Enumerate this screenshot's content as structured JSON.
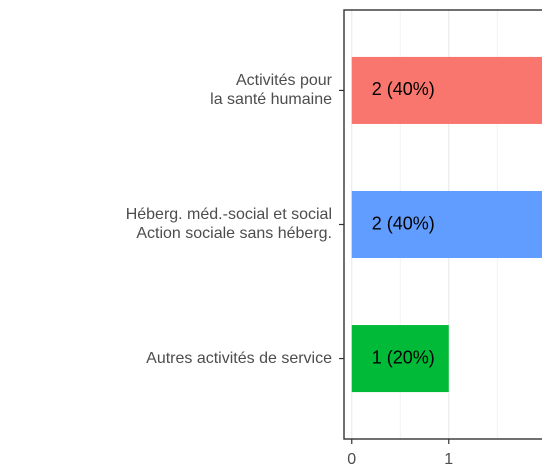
{
  "chart_data": {
    "type": "bar",
    "orientation": "horizontal",
    "categories": [
      [
        "Activités pour",
        "la santé humaine"
      ],
      [
        "Héberg. méd.-social et social",
        "Action sociale sans héberg."
      ],
      [
        "Autres activités de service"
      ]
    ],
    "values": [
      2,
      2,
      1
    ],
    "value_labels": [
      "2 (40%)",
      "2 (40%)",
      "1 (20%)"
    ],
    "colors": [
      "#F8766D",
      "#619CFF",
      "#00BA38"
    ],
    "xlim": [
      -0.08,
      2.05
    ],
    "xticks": [
      0,
      1,
      2
    ],
    "grid": true
  }
}
